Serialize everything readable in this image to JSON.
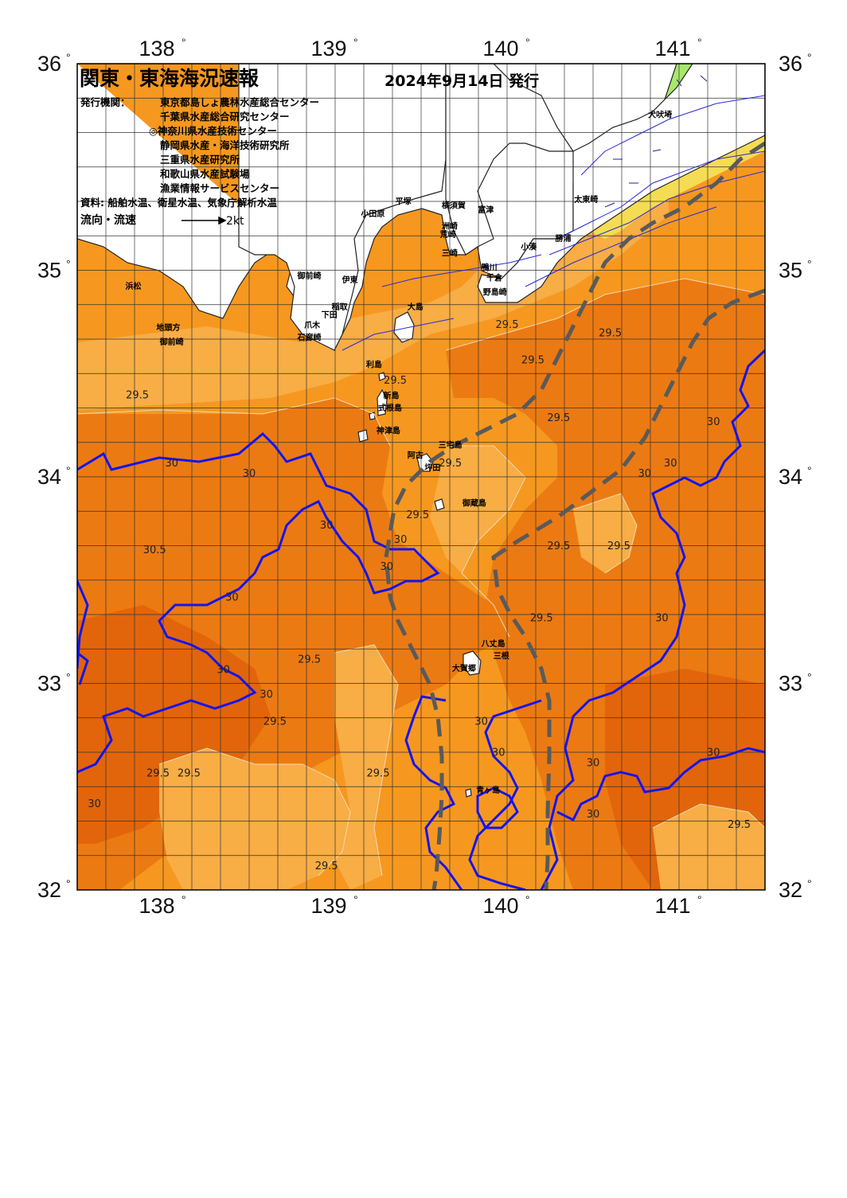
{
  "header": {
    "title": "関東・東海海況速報",
    "issue_date": "2024年9月14日 発行",
    "issuer_label": "発行機関：",
    "issuers": [
      "東京都島しょ農林水産総合センター",
      "千葉県水産総合研究センター",
      "◎神奈川県水産技術センター",
      "静岡県水産・海洋技術研究所",
      "三重県水産研究所",
      "和歌山県水産試験場",
      "漁業情報サービスセンター"
    ],
    "sources": "資料: 船舶水温、衛星水温、気象庁解析水温",
    "flow_label": "流向・流速",
    "flow_scale": "2kt"
  },
  "axes": {
    "lon_labels": [
      "138",
      "139",
      "140",
      "141"
    ],
    "lat_labels": [
      "36",
      "35",
      "34",
      "33",
      "32"
    ],
    "lon_range": [
      137.5,
      141.5
    ],
    "lat_range": [
      32,
      36
    ]
  },
  "colors": {
    "land": "#ffffff",
    "water_295_30": "#f6981f",
    "water_30_305": "#ec7a12",
    "water_warm": "#e2650b",
    "water_285_29": "#f8ad45",
    "coastal_cool": "#f4dc55",
    "coastal_cold": "#a7e86c",
    "isotherm_30": "#1414f0",
    "isotherm_fine": "#f3d9b4",
    "kuroshio_axis": "#5a5a5a",
    "grid": "#333333"
  },
  "places": [
    {
      "name": "小田原",
      "lon": 139.15,
      "lat": 35.26
    },
    {
      "name": "平塚",
      "lon": 139.35,
      "lat": 35.32
    },
    {
      "name": "横須賀",
      "lon": 139.62,
      "lat": 35.3
    },
    {
      "name": "富津",
      "lon": 139.83,
      "lat": 35.28
    },
    {
      "name": "洲崎",
      "lon": 139.62,
      "lat": 35.2
    },
    {
      "name": "荒崎",
      "lon": 139.61,
      "lat": 35.16
    },
    {
      "name": "三崎",
      "lon": 139.62,
      "lat": 35.07
    },
    {
      "name": "太東崎",
      "lon": 140.39,
      "lat": 35.33
    },
    {
      "name": "勝浦",
      "lon": 140.28,
      "lat": 35.14
    },
    {
      "name": "小湊",
      "lon": 140.08,
      "lat": 35.1
    },
    {
      "name": "鴨川",
      "lon": 139.85,
      "lat": 35.0
    },
    {
      "name": "千倉",
      "lon": 139.88,
      "lat": 34.95
    },
    {
      "name": "野島崎",
      "lon": 139.86,
      "lat": 34.88
    },
    {
      "name": "犬吠埼",
      "lon": 140.82,
      "lat": 35.74
    },
    {
      "name": "御前崎",
      "lon": 138.78,
      "lat": 34.96
    },
    {
      "name": "伊東",
      "lon": 139.04,
      "lat": 34.94
    },
    {
      "name": "浜松",
      "lon": 137.78,
      "lat": 34.91
    },
    {
      "name": "稲取",
      "lon": 138.98,
      "lat": 34.81
    },
    {
      "name": "下田",
      "lon": 138.92,
      "lat": 34.77
    },
    {
      "name": "爪木",
      "lon": 138.82,
      "lat": 34.72
    },
    {
      "name": "石廊崎",
      "lon": 138.78,
      "lat": 34.66
    },
    {
      "name": "大島",
      "lon": 139.42,
      "lat": 34.81
    },
    {
      "name": "地頭方",
      "lon": 137.96,
      "lat": 34.71
    },
    {
      "name": "御前崎",
      "lon": 137.98,
      "lat": 34.64
    },
    {
      "name": "利島",
      "lon": 139.18,
      "lat": 34.53
    },
    {
      "name": "新島",
      "lon": 139.28,
      "lat": 34.38
    },
    {
      "name": "式根島",
      "lon": 139.25,
      "lat": 34.32
    },
    {
      "name": "神津島",
      "lon": 139.24,
      "lat": 34.21
    },
    {
      "name": "三宅島",
      "lon": 139.6,
      "lat": 34.14
    },
    {
      "name": "阿古",
      "lon": 139.42,
      "lat": 34.09
    },
    {
      "name": "坪田",
      "lon": 139.52,
      "lat": 34.03
    },
    {
      "name": "御蔵島",
      "lon": 139.74,
      "lat": 33.86
    },
    {
      "name": "八丈島",
      "lon": 139.85,
      "lat": 33.18
    },
    {
      "name": "三根",
      "lon": 139.92,
      "lat": 33.12
    },
    {
      "name": "大賀郷",
      "lon": 139.68,
      "lat": 33.06
    },
    {
      "name": "青ヶ島",
      "lon": 139.82,
      "lat": 32.47
    }
  ],
  "isotherm_labels": [
    {
      "text": "29.5",
      "lon": 137.85,
      "lat": 34.38
    },
    {
      "text": "30.5",
      "lon": 137.95,
      "lat": 33.63
    },
    {
      "text": "30",
      "lon": 138.05,
      "lat": 34.05
    },
    {
      "text": "30",
      "lon": 137.6,
      "lat": 32.4
    },
    {
      "text": "29.5",
      "lon": 138.15,
      "lat": 32.55
    },
    {
      "text": "29.5",
      "lon": 138.85,
      "lat": 33.1
    },
    {
      "text": "29.5",
      "lon": 138.65,
      "lat": 32.8
    },
    {
      "text": "29.5",
      "lon": 138.95,
      "lat": 32.1
    },
    {
      "text": "29.5",
      "lon": 139.25,
      "lat": 32.55
    },
    {
      "text": "30",
      "lon": 138.6,
      "lat": 32.93
    },
    {
      "text": "30",
      "lon": 138.35,
      "lat": 33.05
    },
    {
      "text": "30",
      "lon": 138.4,
      "lat": 33.4
    },
    {
      "text": "30",
      "lon": 138.5,
      "lat": 34.0
    },
    {
      "text": "30",
      "lon": 138.95,
      "lat": 33.75
    },
    {
      "text": "30",
      "lon": 139.3,
      "lat": 33.55
    },
    {
      "text": "30",
      "lon": 139.38,
      "lat": 33.68
    },
    {
      "text": "29.5",
      "lon": 139.48,
      "lat": 33.8
    },
    {
      "text": "29.5",
      "lon": 139.67,
      "lat": 34.05
    },
    {
      "text": "29.5",
      "lon": 140.3,
      "lat": 34.27
    },
    {
      "text": "29.5",
      "lon": 140.15,
      "lat": 34.55
    },
    {
      "text": "29.5",
      "lon": 140.0,
      "lat": 34.72
    },
    {
      "text": "29.5",
      "lon": 140.6,
      "lat": 34.68
    },
    {
      "text": "29.5",
      "lon": 140.65,
      "lat": 33.65
    },
    {
      "text": "29.5",
      "lon": 140.3,
      "lat": 33.65
    },
    {
      "text": "29.5",
      "lon": 140.2,
      "lat": 33.3
    },
    {
      "text": "30",
      "lon": 140.9,
      "lat": 33.3
    },
    {
      "text": "30",
      "lon": 140.8,
      "lat": 34.0
    },
    {
      "text": "30",
      "lon": 140.95,
      "lat": 34.05
    },
    {
      "text": "30",
      "lon": 141.2,
      "lat": 34.25
    },
    {
      "text": "30",
      "lon": 139.85,
      "lat": 32.8
    },
    {
      "text": "30",
      "lon": 139.95,
      "lat": 32.65
    },
    {
      "text": "30",
      "lon": 140.5,
      "lat": 32.6
    },
    {
      "text": "30",
      "lon": 140.5,
      "lat": 32.35
    },
    {
      "text": "30",
      "lon": 141.2,
      "lat": 32.65
    },
    {
      "text": "29.5",
      "lon": 141.35,
      "lat": 32.3
    },
    {
      "text": "29.5",
      "lon": 137.97,
      "lat": 32.55
    },
    {
      "text": "29.5",
      "lon": 139.35,
      "lat": 34.45
    }
  ]
}
